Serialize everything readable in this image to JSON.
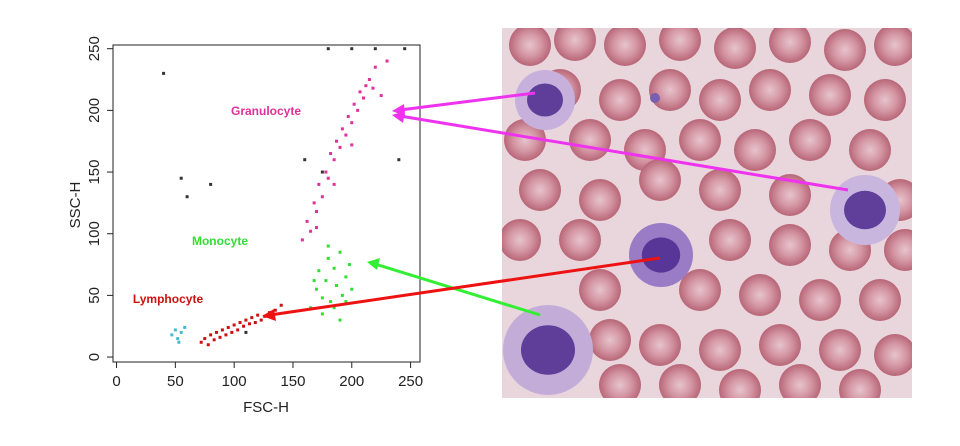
{
  "chart_data": {
    "type": "scatter",
    "xlabel": "FSC-H",
    "ylabel": "SSC-H",
    "xlim": [
      -3,
      258
    ],
    "ylim": [
      -4,
      253
    ],
    "xticks": [
      0,
      50,
      100,
      150,
      200,
      250
    ],
    "yticks": [
      0,
      50,
      100,
      150,
      200,
      250
    ],
    "series": [
      {
        "name": "Granulocyte",
        "color": "#e0309a",
        "x": [
          158,
          162,
          165,
          168,
          170,
          172,
          175,
          178,
          180,
          182,
          185,
          187,
          190,
          192,
          195,
          197,
          200,
          202,
          205,
          207,
          210,
          212,
          215,
          218,
          220,
          170,
          185,
          200,
          225,
          230
        ],
        "values": [
          95,
          110,
          102,
          125,
          118,
          140,
          130,
          150,
          145,
          165,
          160,
          175,
          170,
          185,
          180,
          195,
          190,
          205,
          200,
          215,
          210,
          220,
          225,
          218,
          235,
          105,
          140,
          172,
          212,
          240
        ]
      },
      {
        "name": "Monocyte",
        "color": "#33dd33",
        "x": [
          165,
          170,
          172,
          175,
          178,
          180,
          182,
          185,
          187,
          190,
          192,
          195,
          198,
          200,
          175,
          185,
          168,
          190,
          180,
          195
        ],
        "values": [
          40,
          55,
          70,
          48,
          62,
          80,
          45,
          72,
          58,
          85,
          50,
          65,
          75,
          55,
          35,
          40,
          62,
          30,
          90,
          45
        ]
      },
      {
        "name": "Lymphocyte",
        "color": "#cc1111",
        "x": [
          72,
          75,
          78,
          80,
          83,
          85,
          88,
          90,
          93,
          95,
          98,
          100,
          103,
          105,
          108,
          110,
          113,
          115,
          118,
          120,
          123,
          126,
          130,
          135,
          140
        ],
        "values": [
          12,
          15,
          10,
          18,
          14,
          20,
          16,
          22,
          18,
          24,
          20,
          26,
          22,
          28,
          25,
          30,
          27,
          32,
          28,
          34,
          30,
          33,
          36,
          38,
          42
        ]
      },
      {
        "color": "#44bbcc",
        "x": [
          47,
          50,
          52,
          55,
          58,
          53
        ],
        "values": [
          18,
          22,
          15,
          20,
          24,
          12
        ]
      },
      {
        "color": "#333333",
        "x": [
          40,
          55,
          80,
          160,
          175,
          110,
          240,
          60,
          180,
          200,
          220,
          245
        ],
        "values": [
          230,
          145,
          140,
          160,
          150,
          20,
          160,
          130,
          250,
          250,
          250,
          250
        ]
      }
    ]
  }
}
